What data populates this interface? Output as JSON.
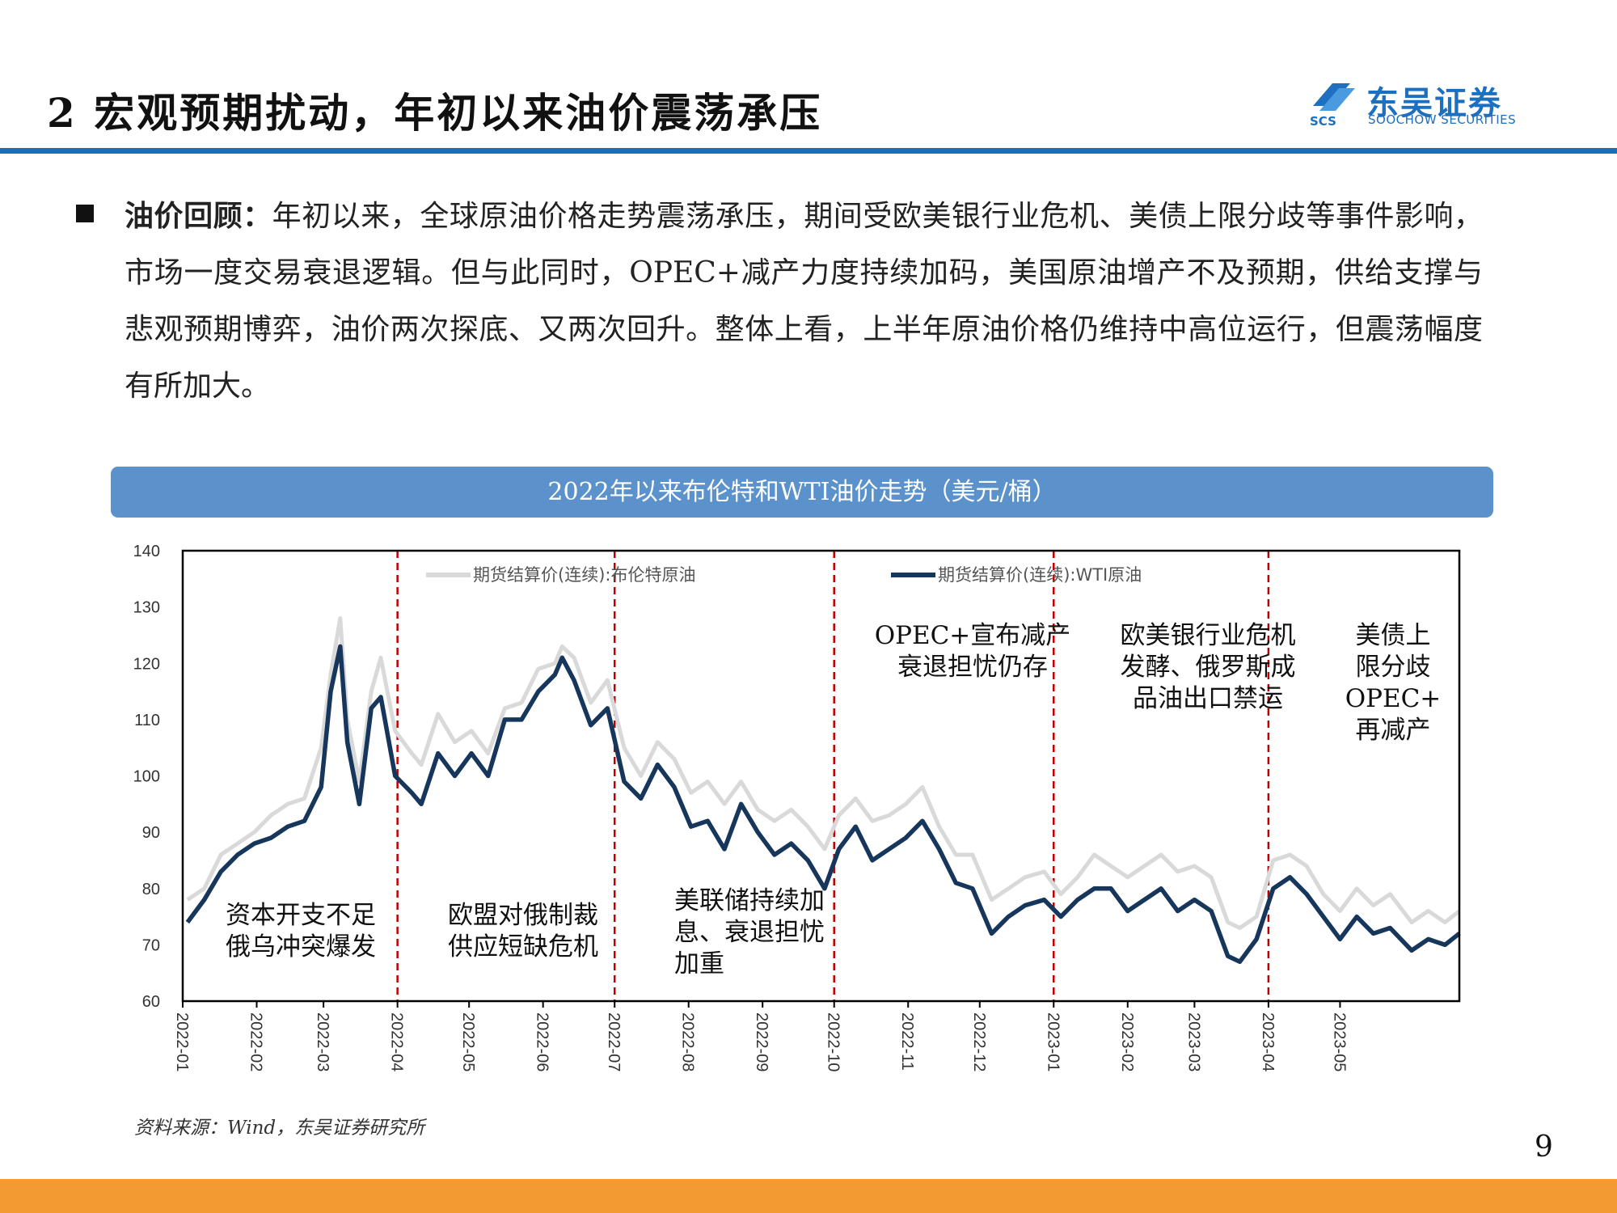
{
  "header": {
    "title": "2 宏观预期扰动，年初以来油价震荡承压",
    "logo_cn": "东吴证券",
    "logo_en": "SOOCHOW SECURITIES",
    "logo_mark_text": "SCS"
  },
  "body": {
    "lead": "油价回顾：",
    "text": "年初以来，全球原油价格走势震荡承压，期间受欧美银行业危机、美债上限分歧等事件影响，市场一度交易衰退逻辑。但与此同时，OPEC+减产力度持续加码，美国原油增产不及预期，供给支撑与悲观预期博弈，油价两次探底、又两次回升。整体上看，上半年原油价格仍维持中高位运行，但震荡幅度有所加大。"
  },
  "chart_banner": "2022年以来布伦特和WTI油价走势（美元/桶）",
  "source": "资料来源：Wind，东吴证券研究所",
  "page_number": "9",
  "colors": {
    "brent": "#d9d9d9",
    "wti": "#16365c",
    "event_line": "#c00000",
    "banner": "#5b92cb",
    "rule": "#1a6fbd",
    "footer": "#f39a30"
  },
  "chart_data": {
    "type": "line",
    "ylim": [
      60,
      140
    ],
    "yticks": [
      "60",
      "70",
      "80",
      "90",
      "100",
      "110",
      "120",
      "130",
      "140"
    ],
    "xlim": [
      "2022-01-01",
      "2023-06-20"
    ],
    "xticks": [
      "2022-01",
      "2022-02",
      "2022-03",
      "2022-04",
      "2022-05",
      "2022-06",
      "2022-07",
      "2022-08",
      "2022-09",
      "2022-10",
      "2022-11",
      "2022-12",
      "2023-01",
      "2023-02",
      "2023-03",
      "2023-04",
      "2023-05"
    ],
    "grid": false,
    "legend_position": "top",
    "series": [
      {
        "name": "期货结算价(连续):布伦特原油",
        "x": [
          "2022-01-03",
          "2022-01-10",
          "2022-01-17",
          "2022-01-24",
          "2022-01-31",
          "2022-02-07",
          "2022-02-14",
          "2022-02-21",
          "2022-02-28",
          "2022-03-04",
          "2022-03-08",
          "2022-03-11",
          "2022-03-16",
          "2022-03-21",
          "2022-03-25",
          "2022-03-31",
          "2022-04-07",
          "2022-04-11",
          "2022-04-18",
          "2022-04-25",
          "2022-05-02",
          "2022-05-09",
          "2022-05-16",
          "2022-05-23",
          "2022-05-30",
          "2022-06-06",
          "2022-06-09",
          "2022-06-14",
          "2022-06-21",
          "2022-06-28",
          "2022-07-05",
          "2022-07-12",
          "2022-07-19",
          "2022-07-26",
          "2022-08-02",
          "2022-08-09",
          "2022-08-16",
          "2022-08-23",
          "2022-08-30",
          "2022-09-06",
          "2022-09-13",
          "2022-09-20",
          "2022-09-27",
          "2022-10-03",
          "2022-10-10",
          "2022-10-17",
          "2022-10-24",
          "2022-10-31",
          "2022-11-07",
          "2022-11-14",
          "2022-11-21",
          "2022-11-28",
          "2022-12-06",
          "2022-12-13",
          "2022-12-20",
          "2022-12-28",
          "2023-01-04",
          "2023-01-11",
          "2023-01-18",
          "2023-01-25",
          "2023-02-01",
          "2023-02-08",
          "2023-02-15",
          "2023-02-22",
          "2023-03-01",
          "2023-03-08",
          "2023-03-15",
          "2023-03-20",
          "2023-03-27",
          "2023-04-03",
          "2023-04-10",
          "2023-04-17",
          "2023-04-24",
          "2023-05-01",
          "2023-05-08",
          "2023-05-15",
          "2023-05-22",
          "2023-05-31",
          "2023-06-07",
          "2023-06-14",
          "2023-06-20"
        ],
        "values": [
          78,
          80,
          86,
          88,
          90,
          93,
          95,
          96,
          105,
          118,
          128,
          110,
          99,
          115,
          121,
          108,
          104,
          102,
          111,
          106,
          108,
          104,
          112,
          113,
          119,
          120,
          123,
          121,
          113,
          117,
          105,
          100,
          106,
          103,
          97,
          99,
          95,
          99,
          94,
          92,
          94,
          91,
          87,
          93,
          96,
          92,
          93,
          95,
          98,
          91,
          86,
          86,
          78,
          80,
          82,
          83,
          79,
          82,
          86,
          84,
          82,
          84,
          86,
          83,
          84,
          82,
          74,
          73,
          75,
          85,
          86,
          84,
          79,
          76,
          80,
          77,
          79,
          74,
          76,
          74,
          76
        ]
      },
      {
        "name": "期货结算价(连续):WTI原油",
        "x": [
          "2022-01-03",
          "2022-01-10",
          "2022-01-17",
          "2022-01-24",
          "2022-01-31",
          "2022-02-07",
          "2022-02-14",
          "2022-02-21",
          "2022-02-28",
          "2022-03-04",
          "2022-03-08",
          "2022-03-11",
          "2022-03-16",
          "2022-03-21",
          "2022-03-25",
          "2022-03-31",
          "2022-04-07",
          "2022-04-11",
          "2022-04-18",
          "2022-04-25",
          "2022-05-02",
          "2022-05-09",
          "2022-05-16",
          "2022-05-23",
          "2022-05-30",
          "2022-06-06",
          "2022-06-09",
          "2022-06-14",
          "2022-06-21",
          "2022-06-28",
          "2022-07-05",
          "2022-07-12",
          "2022-07-19",
          "2022-07-26",
          "2022-08-02",
          "2022-08-09",
          "2022-08-16",
          "2022-08-23",
          "2022-08-30",
          "2022-09-06",
          "2022-09-13",
          "2022-09-20",
          "2022-09-27",
          "2022-10-03",
          "2022-10-10",
          "2022-10-17",
          "2022-10-24",
          "2022-10-31",
          "2022-11-07",
          "2022-11-14",
          "2022-11-21",
          "2022-11-28",
          "2022-12-06",
          "2022-12-13",
          "2022-12-20",
          "2022-12-28",
          "2023-01-04",
          "2023-01-11",
          "2023-01-18",
          "2023-01-25",
          "2023-02-01",
          "2023-02-08",
          "2023-02-15",
          "2023-02-22",
          "2023-03-01",
          "2023-03-08",
          "2023-03-15",
          "2023-03-20",
          "2023-03-27",
          "2023-04-03",
          "2023-04-10",
          "2023-04-17",
          "2023-04-24",
          "2023-05-01",
          "2023-05-08",
          "2023-05-15",
          "2023-05-22",
          "2023-05-31",
          "2023-06-07",
          "2023-06-14",
          "2023-06-20"
        ],
        "values": [
          74,
          78,
          83,
          86,
          88,
          89,
          91,
          92,
          98,
          115,
          123,
          106,
          95,
          112,
          114,
          100,
          97,
          95,
          104,
          100,
          104,
          100,
          110,
          110,
          115,
          118,
          121,
          117,
          109,
          112,
          99,
          96,
          102,
          98,
          91,
          92,
          87,
          95,
          90,
          86,
          88,
          85,
          80,
          87,
          91,
          85,
          87,
          89,
          92,
          87,
          81,
          80,
          72,
          75,
          77,
          78,
          75,
          78,
          80,
          80,
          76,
          78,
          80,
          76,
          78,
          76,
          68,
          67,
          71,
          80,
          82,
          79,
          75,
          71,
          75,
          72,
          73,
          69,
          71,
          70,
          72
        ]
      }
    ],
    "event_dates": [
      "2022-04-01",
      "2022-07-01",
      "2022-10-01",
      "2023-01-01",
      "2023-04-01"
    ],
    "annotations": [
      {
        "lines": [
          "资本开支不足",
          "俄乌冲突爆发"
        ]
      },
      {
        "lines": [
          "欧盟对俄制裁",
          "供应短缺危机"
        ]
      },
      {
        "lines": [
          "美联储持续加",
          "息、衰退担忧",
          "加重"
        ]
      },
      {
        "lines": [
          "OPEC+宣布减产",
          "衰退担忧仍存"
        ]
      },
      {
        "lines": [
          "欧美银行业危机",
          "发酵、俄罗斯成",
          "品油出口禁运"
        ]
      },
      {
        "lines": [
          "美债上",
          "限分歧",
          "OPEC+",
          "再减产"
        ]
      }
    ]
  }
}
